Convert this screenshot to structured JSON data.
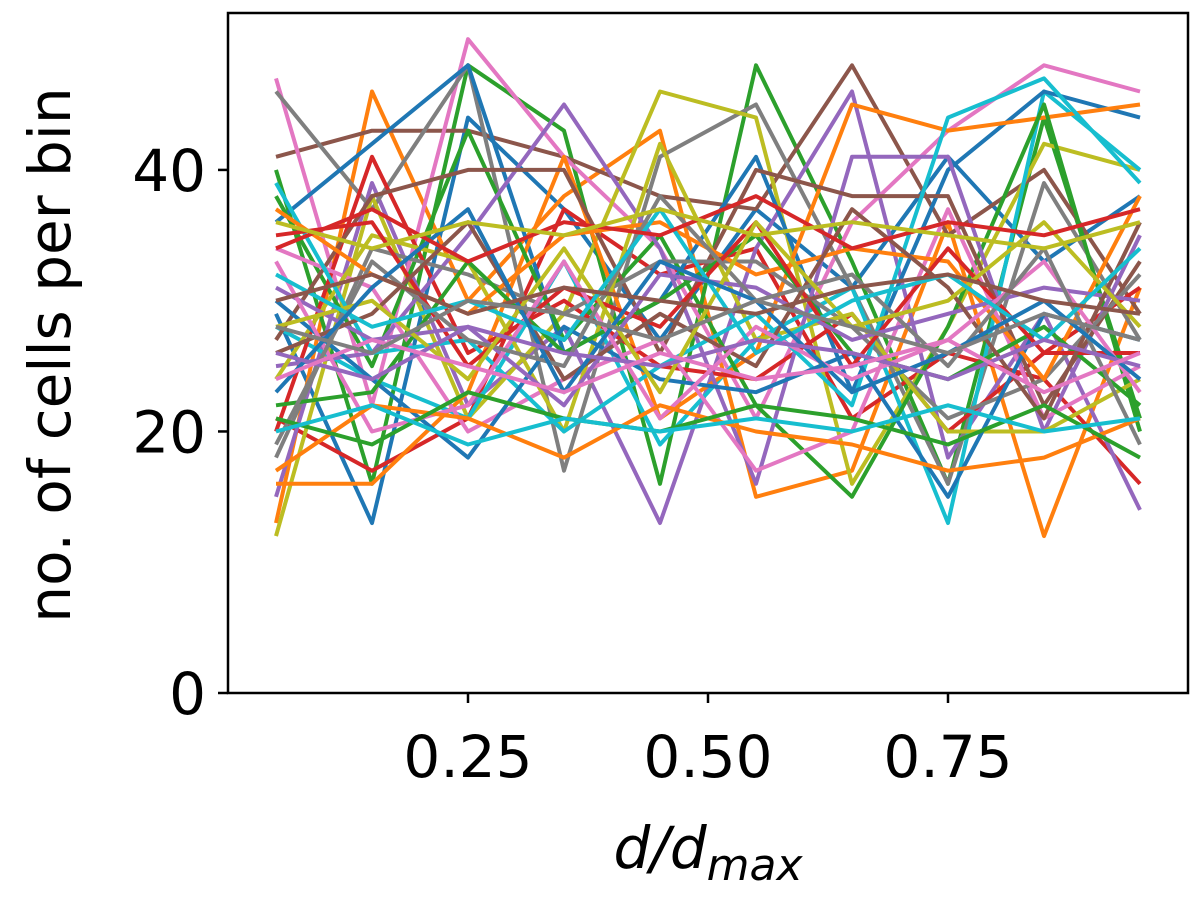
{
  "chart_data": {
    "type": "line",
    "x": [
      0.05,
      0.15,
      0.25,
      0.35,
      0.45,
      0.55,
      0.65,
      0.75,
      0.85,
      0.95
    ],
    "xlabel": {
      "base": "d/d",
      "sub": "max"
    },
    "ylabel": "no. of cells per bin",
    "xticks": [
      0.25,
      0.5,
      0.75
    ],
    "xtick_labels": [
      "0.25",
      "0.50",
      "0.75"
    ],
    "yticks": [
      0,
      20,
      40
    ],
    "ytick_labels": [
      "0",
      "20",
      "40"
    ],
    "xlim": [
      0.0,
      1.0
    ],
    "ylim": [
      0,
      52
    ],
    "grid": false,
    "legend": "none",
    "palette": [
      "#1f77b4",
      "#ff7f0e",
      "#2ca02c",
      "#d62728",
      "#9467bd",
      "#8c564b",
      "#e377c2",
      "#7f7f7f",
      "#bcbd22",
      "#17becf"
    ],
    "series": [
      {
        "values": [
          29,
          13,
          44,
          37,
          27,
          37,
          31,
          41,
          33,
          38
        ]
      },
      {
        "values": [
          13,
          46,
          30,
          38,
          43,
          15,
          17,
          36,
          12,
          31
        ]
      },
      {
        "values": [
          40,
          16,
          48,
          43,
          16,
          48,
          33,
          16,
          44,
          21
        ]
      },
      {
        "values": [
          21,
          17,
          21,
          37,
          32,
          34,
          21,
          26,
          24,
          16
        ]
      },
      {
        "values": [
          15,
          39,
          22,
          28,
          13,
          34,
          46,
          18,
          29,
          14
        ]
      },
      {
        "values": [
          41,
          43,
          43,
          41,
          38,
          37,
          48,
          35,
          40,
          29
        ]
      },
      {
        "values": [
          47,
          22,
          50,
          41,
          34,
          21,
          36,
          43,
          48,
          46
        ]
      },
      {
        "values": [
          46,
          37,
          48,
          17,
          41,
          45,
          31,
          16,
          39,
          27
        ]
      },
      {
        "values": [
          12,
          38,
          21,
          29,
          46,
          44,
          16,
          28,
          42,
          40
        ]
      },
      {
        "values": [
          28,
          24,
          21,
          33,
          19,
          27,
          31,
          13,
          46,
          40
        ]
      },
      {
        "values": [
          36,
          42,
          48,
          26,
          30,
          41,
          23,
          40,
          46,
          44
        ]
      },
      {
        "values": [
          16,
          16,
          23,
          41,
          21,
          26,
          45,
          43,
          44,
          45
        ]
      },
      {
        "values": [
          38,
          25,
          43,
          27,
          35,
          22,
          15,
          28,
          45,
          20
        ]
      },
      {
        "values": [
          20,
          41,
          26,
          30,
          25,
          24,
          29,
          20,
          26,
          31
        ]
      },
      {
        "values": [
          25,
          26,
          35,
          45,
          34,
          16,
          41,
          41,
          20,
          35
        ]
      },
      {
        "values": [
          27,
          38,
          40,
          40,
          26,
          40,
          38,
          38,
          22,
          33
        ]
      },
      {
        "values": [
          34,
          31,
          20,
          24,
          27,
          17,
          20,
          37,
          21,
          25
        ]
      },
      {
        "values": [
          18,
          34,
          32,
          29,
          33,
          33,
          28,
          21,
          24,
          32
        ]
      },
      {
        "values": [
          24,
          35,
          33,
          20,
          42,
          27,
          29,
          20,
          20,
          24
        ]
      },
      {
        "values": [
          39,
          26,
          27,
          20,
          25,
          29,
          22,
          44,
          47,
          39
        ]
      },
      {
        "values": [
          30,
          24,
          18,
          28,
          24,
          23,
          26,
          15,
          29,
          27
        ]
      },
      {
        "values": [
          37,
          32,
          29,
          35,
          36,
          32,
          34,
          33,
          24,
          38
        ]
      },
      {
        "values": [
          22,
          23,
          33,
          26,
          30,
          35,
          26,
          24,
          28,
          22
        ]
      },
      {
        "values": [
          35,
          36,
          25,
          31,
          28,
          36,
          25,
          34,
          26,
          26
        ]
      },
      {
        "values": [
          31,
          27,
          28,
          22,
          32,
          31,
          27,
          29,
          31,
          30
        ]
      },
      {
        "values": [
          26,
          29,
          36,
          24,
          29,
          25,
          37,
          31,
          21,
          36
        ]
      },
      {
        "values": [
          33,
          20,
          22,
          33,
          21,
          28,
          24,
          27,
          33,
          23
        ]
      },
      {
        "values": [
          19,
          33,
          27,
          25,
          38,
          30,
          32,
          25,
          34,
          19
        ]
      },
      {
        "values": [
          28,
          30,
          24,
          34,
          23,
          36,
          28,
          30,
          36,
          28
        ]
      },
      {
        "values": [
          32,
          28,
          30,
          27,
          37,
          26,
          30,
          32,
          27,
          34
        ]
      },
      {
        "values": [
          23,
          31,
          37,
          23,
          33,
          30,
          23,
          26,
          30,
          24
        ]
      },
      {
        "values": [
          17,
          22,
          21,
          18,
          22,
          20,
          19,
          17,
          18,
          21
        ]
      },
      {
        "values": [
          21,
          19,
          23,
          21,
          20,
          22,
          21,
          19,
          22,
          18
        ]
      },
      {
        "values": [
          34,
          37,
          33,
          36,
          35,
          38,
          34,
          36,
          35,
          37
        ]
      },
      {
        "values": [
          26,
          24,
          28,
          26,
          25,
          27,
          26,
          24,
          27,
          25
        ]
      },
      {
        "values": [
          30,
          32,
          29,
          31,
          30,
          29,
          31,
          32,
          30,
          29
        ]
      },
      {
        "values": [
          24,
          27,
          25,
          23,
          26,
          24,
          25,
          27,
          23,
          26
        ]
      },
      {
        "values": [
          28,
          26,
          30,
          29,
          27,
          30,
          28,
          26,
          29,
          27
        ]
      },
      {
        "values": [
          36,
          34,
          36,
          35,
          37,
          35,
          36,
          35,
          34,
          36
        ]
      },
      {
        "values": [
          20,
          22,
          19,
          21,
          20,
          21,
          20,
          22,
          20,
          21
        ]
      }
    ]
  }
}
